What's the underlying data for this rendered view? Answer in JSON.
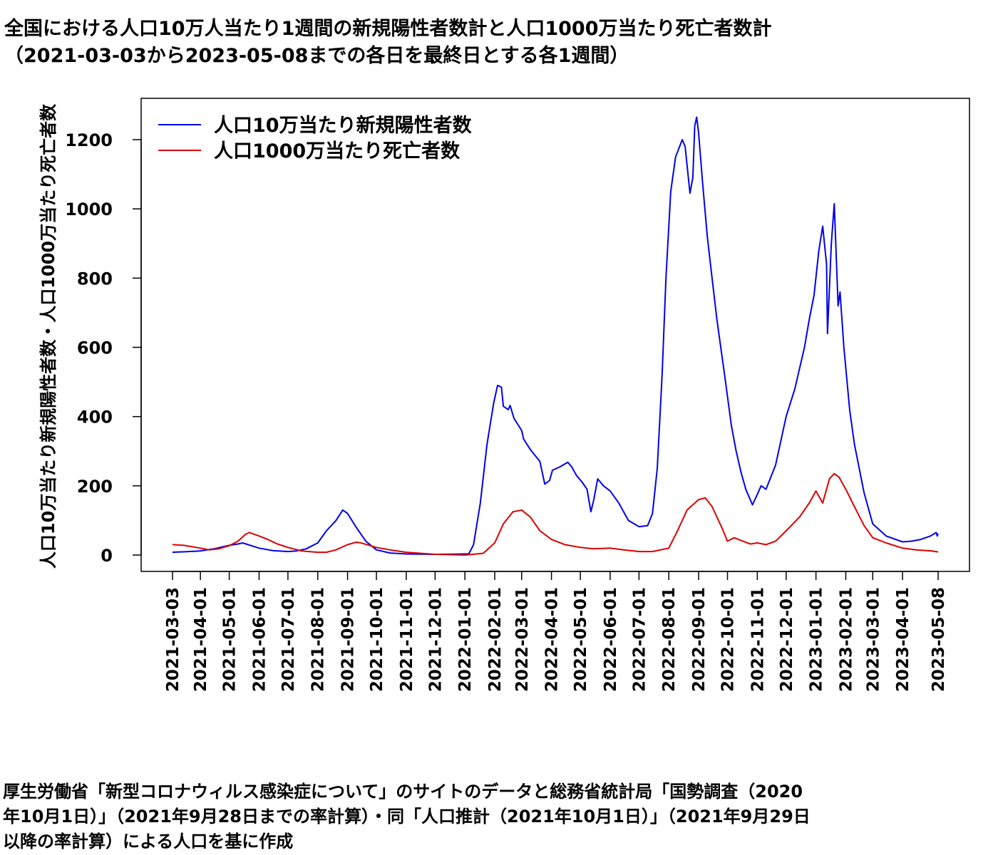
{
  "title": {
    "line1": "全国における人口10万人当たり1週間の新規陽性者数計と人口1000万当たり死亡者数計",
    "line2": "（2021-03-03から2023-05-08までの各日を最終日とする各1週間）"
  },
  "source": {
    "line1": "厚生労働省「新型コロナウィルス感染症について」のサイトのデータと総務省統計局「国勢調査（2020",
    "line2": "年10月1日）」（2021年9月28日までの率計算）・同「人口推計（2021年10月1日）」（2021年9月29日",
    "line3": "以降の率計算）による人口を基に作成"
  },
  "chart_data": {
    "type": "line",
    "ylabel": "人口10万当たり新規陽性者数・人口1000万当たり死亡者数",
    "xlabel": "",
    "xlim": [
      "2021-03-03",
      "2023-05-08"
    ],
    "ylim": [
      0,
      1300
    ],
    "y_ticks": [
      0,
      200,
      400,
      600,
      800,
      1000,
      1200
    ],
    "x_ticks": [
      "2021-03-03",
      "2021-04-01",
      "2021-05-01",
      "2021-06-01",
      "2021-07-01",
      "2021-08-01",
      "2021-09-01",
      "2021-10-01",
      "2021-11-01",
      "2021-12-01",
      "2022-01-01",
      "2022-02-01",
      "2022-03-01",
      "2022-04-01",
      "2022-05-01",
      "2022-06-01",
      "2022-07-01",
      "2022-08-01",
      "2022-09-01",
      "2022-10-01",
      "2022-11-01",
      "2022-12-01",
      "2023-01-01",
      "2023-02-01",
      "2023-03-01",
      "2023-04-01",
      "2023-05-08"
    ],
    "legend_position": "top-left",
    "grid": false,
    "series": [
      {
        "name": "人口10万当たり新規陽性者数",
        "color": "#0000ee",
        "points": [
          [
            "2021-03-03",
            8
          ],
          [
            "2021-03-20",
            10
          ],
          [
            "2021-04-01",
            12
          ],
          [
            "2021-04-15",
            18
          ],
          [
            "2021-05-01",
            28
          ],
          [
            "2021-05-10",
            32
          ],
          [
            "2021-05-15",
            35
          ],
          [
            "2021-06-01",
            20
          ],
          [
            "2021-06-15",
            13
          ],
          [
            "2021-07-01",
            10
          ],
          [
            "2021-07-10",
            12
          ],
          [
            "2021-07-20",
            18
          ],
          [
            "2021-08-01",
            35
          ],
          [
            "2021-08-10",
            70
          ],
          [
            "2021-08-20",
            100
          ],
          [
            "2021-08-27",
            130
          ],
          [
            "2021-09-01",
            120
          ],
          [
            "2021-09-10",
            80
          ],
          [
            "2021-09-20",
            40
          ],
          [
            "2021-10-01",
            15
          ],
          [
            "2021-10-15",
            6
          ],
          [
            "2021-11-01",
            3
          ],
          [
            "2021-12-01",
            2
          ],
          [
            "2022-01-01",
            3
          ],
          [
            "2022-01-05",
            3
          ],
          [
            "2022-01-10",
            30
          ],
          [
            "2022-01-17",
            150
          ],
          [
            "2022-01-24",
            320
          ],
          [
            "2022-01-31",
            440
          ],
          [
            "2022-02-04",
            490
          ],
          [
            "2022-02-08",
            485
          ],
          [
            "2022-02-10",
            430
          ],
          [
            "2022-02-15",
            420
          ],
          [
            "2022-02-17",
            432
          ],
          [
            "2022-02-21",
            395
          ],
          [
            "2022-03-01",
            360
          ],
          [
            "2022-03-03",
            335
          ],
          [
            "2022-03-10",
            305
          ],
          [
            "2022-03-20",
            270
          ],
          [
            "2022-03-25",
            205
          ],
          [
            "2022-03-30",
            215
          ],
          [
            "2022-04-02",
            245
          ],
          [
            "2022-04-10",
            255
          ],
          [
            "2022-04-18",
            268
          ],
          [
            "2022-04-22",
            255
          ],
          [
            "2022-04-27",
            230
          ],
          [
            "2022-05-03",
            210
          ],
          [
            "2022-05-08",
            190
          ],
          [
            "2022-05-12",
            125
          ],
          [
            "2022-05-15",
            160
          ],
          [
            "2022-05-19",
            220
          ],
          [
            "2022-05-25",
            200
          ],
          [
            "2022-06-01",
            185
          ],
          [
            "2022-06-10",
            150
          ],
          [
            "2022-06-20",
            100
          ],
          [
            "2022-07-01",
            82
          ],
          [
            "2022-07-10",
            85
          ],
          [
            "2022-07-15",
            120
          ],
          [
            "2022-07-20",
            250
          ],
          [
            "2022-07-25",
            520
          ],
          [
            "2022-07-29",
            800
          ],
          [
            "2022-08-03",
            1050
          ],
          [
            "2022-08-08",
            1150
          ],
          [
            "2022-08-15",
            1200
          ],
          [
            "2022-08-18",
            1180
          ],
          [
            "2022-08-23",
            1045
          ],
          [
            "2022-08-26",
            1090
          ],
          [
            "2022-08-28",
            1240
          ],
          [
            "2022-08-30",
            1265
          ],
          [
            "2022-09-01",
            1220
          ],
          [
            "2022-09-05",
            1080
          ],
          [
            "2022-09-10",
            920
          ],
          [
            "2022-09-15",
            800
          ],
          [
            "2022-09-20",
            680
          ],
          [
            "2022-09-28",
            520
          ],
          [
            "2022-10-05",
            375
          ],
          [
            "2022-10-10",
            300
          ],
          [
            "2022-10-15",
            240
          ],
          [
            "2022-10-20",
            190
          ],
          [
            "2022-10-27",
            145
          ],
          [
            "2022-11-01",
            175
          ],
          [
            "2022-11-05",
            200
          ],
          [
            "2022-11-10",
            190
          ],
          [
            "2022-11-20",
            260
          ],
          [
            "2022-12-01",
            400
          ],
          [
            "2022-12-10",
            480
          ],
          [
            "2022-12-20",
            600
          ],
          [
            "2022-12-25",
            680
          ],
          [
            "2022-12-30",
            750
          ],
          [
            "2023-01-04",
            880
          ],
          [
            "2023-01-08",
            950
          ],
          [
            "2023-01-12",
            840
          ],
          [
            "2023-01-13",
            640
          ],
          [
            "2023-01-17",
            900
          ],
          [
            "2023-01-20",
            1015
          ],
          [
            "2023-01-24",
            720
          ],
          [
            "2023-01-26",
            760
          ],
          [
            "2023-01-30",
            600
          ],
          [
            "2023-02-05",
            420
          ],
          [
            "2023-02-10",
            320
          ],
          [
            "2023-02-20",
            180
          ],
          [
            "2023-03-01",
            90
          ],
          [
            "2023-03-15",
            55
          ],
          [
            "2023-04-01",
            38
          ],
          [
            "2023-04-10",
            40
          ],
          [
            "2023-04-20",
            45
          ],
          [
            "2023-04-30",
            55
          ],
          [
            "2023-05-06",
            65
          ],
          [
            "2023-05-07",
            55
          ],
          [
            "2023-05-08",
            62
          ]
        ]
      },
      {
        "name": "人口1000万当たり死亡者数",
        "color": "#dd0000",
        "points": [
          [
            "2021-03-03",
            30
          ],
          [
            "2021-03-15",
            28
          ],
          [
            "2021-04-01",
            20
          ],
          [
            "2021-04-10",
            15
          ],
          [
            "2021-04-20",
            18
          ],
          [
            "2021-05-01",
            27
          ],
          [
            "2021-05-10",
            40
          ],
          [
            "2021-05-18",
            60
          ],
          [
            "2021-05-22",
            65
          ],
          [
            "2021-06-01",
            55
          ],
          [
            "2021-06-10",
            45
          ],
          [
            "2021-06-20",
            32
          ],
          [
            "2021-07-01",
            22
          ],
          [
            "2021-07-15",
            12
          ],
          [
            "2021-08-01",
            8
          ],
          [
            "2021-08-10",
            8
          ],
          [
            "2021-08-20",
            15
          ],
          [
            "2021-09-01",
            30
          ],
          [
            "2021-09-10",
            37
          ],
          [
            "2021-09-15",
            35
          ],
          [
            "2021-10-01",
            22
          ],
          [
            "2021-10-15",
            15
          ],
          [
            "2021-11-01",
            8
          ],
          [
            "2021-12-01",
            2
          ],
          [
            "2022-01-01",
            0
          ],
          [
            "2022-01-20",
            5
          ],
          [
            "2022-02-01",
            35
          ],
          [
            "2022-02-10",
            90
          ],
          [
            "2022-02-20",
            125
          ],
          [
            "2022-03-01",
            130
          ],
          [
            "2022-03-10",
            110
          ],
          [
            "2022-03-20",
            70
          ],
          [
            "2022-04-01",
            45
          ],
          [
            "2022-04-15",
            30
          ],
          [
            "2022-05-01",
            22
          ],
          [
            "2022-05-15",
            18
          ],
          [
            "2022-06-01",
            20
          ],
          [
            "2022-06-15",
            15
          ],
          [
            "2022-07-01",
            10
          ],
          [
            "2022-07-15",
            10
          ],
          [
            "2022-08-01",
            20
          ],
          [
            "2022-08-10",
            70
          ],
          [
            "2022-08-20",
            130
          ],
          [
            "2022-09-01",
            160
          ],
          [
            "2022-09-08",
            165
          ],
          [
            "2022-09-15",
            140
          ],
          [
            "2022-09-25",
            80
          ],
          [
            "2022-10-01",
            40
          ],
          [
            "2022-10-08",
            50
          ],
          [
            "2022-10-15",
            42
          ],
          [
            "2022-10-25",
            32
          ],
          [
            "2022-11-01",
            35
          ],
          [
            "2022-11-10",
            30
          ],
          [
            "2022-11-20",
            40
          ],
          [
            "2022-12-01",
            70
          ],
          [
            "2022-12-15",
            110
          ],
          [
            "2022-12-25",
            150
          ],
          [
            "2023-01-01",
            185
          ],
          [
            "2023-01-08",
            150
          ],
          [
            "2023-01-15",
            220
          ],
          [
            "2023-01-20",
            235
          ],
          [
            "2023-01-25",
            225
          ],
          [
            "2023-02-01",
            190
          ],
          [
            "2023-02-10",
            140
          ],
          [
            "2023-02-20",
            85
          ],
          [
            "2023-03-01",
            50
          ],
          [
            "2023-03-15",
            35
          ],
          [
            "2023-04-01",
            20
          ],
          [
            "2023-04-15",
            15
          ],
          [
            "2023-05-01",
            12
          ],
          [
            "2023-05-08",
            9
          ]
        ]
      }
    ]
  }
}
